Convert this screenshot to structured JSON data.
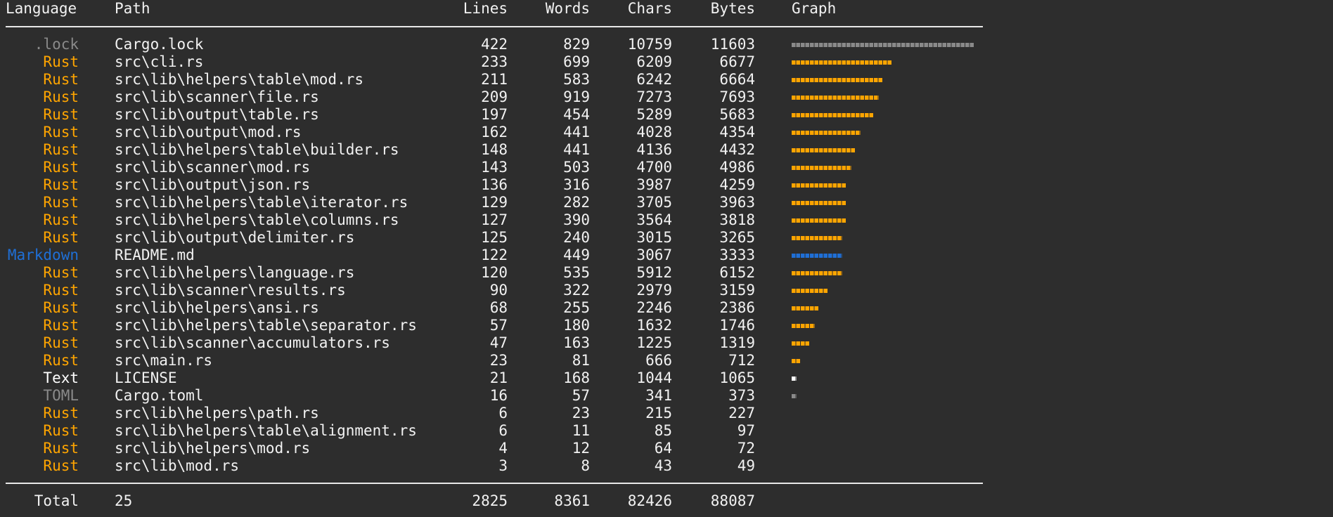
{
  "header": {
    "language": "Language",
    "path": "Path",
    "lines": "Lines",
    "words": "Words",
    "chars": "Chars",
    "bytes": "Bytes",
    "graph": "Graph"
  },
  "rows": [
    {
      "language": ".lock",
      "color": "#8a8a8a",
      "path": "Cargo.lock",
      "lines": 422,
      "words": 829,
      "chars": 10759,
      "bytes": 11603
    },
    {
      "language": "Rust",
      "color": "#ffa500",
      "path": "src\\cli.rs",
      "lines": 233,
      "words": 699,
      "chars": 6209,
      "bytes": 6677
    },
    {
      "language": "Rust",
      "color": "#ffa500",
      "path": "src\\lib\\helpers\\table\\mod.rs",
      "lines": 211,
      "words": 583,
      "chars": 6242,
      "bytes": 6664
    },
    {
      "language": "Rust",
      "color": "#ffa500",
      "path": "src\\lib\\scanner\\file.rs",
      "lines": 209,
      "words": 919,
      "chars": 7273,
      "bytes": 7693
    },
    {
      "language": "Rust",
      "color": "#ffa500",
      "path": "src\\lib\\output\\table.rs",
      "lines": 197,
      "words": 454,
      "chars": 5289,
      "bytes": 5683
    },
    {
      "language": "Rust",
      "color": "#ffa500",
      "path": "src\\lib\\output\\mod.rs",
      "lines": 162,
      "words": 441,
      "chars": 4028,
      "bytes": 4354
    },
    {
      "language": "Rust",
      "color": "#ffa500",
      "path": "src\\lib\\helpers\\table\\builder.rs",
      "lines": 148,
      "words": 441,
      "chars": 4136,
      "bytes": 4432
    },
    {
      "language": "Rust",
      "color": "#ffa500",
      "path": "src\\lib\\scanner\\mod.rs",
      "lines": 143,
      "words": 503,
      "chars": 4700,
      "bytes": 4986
    },
    {
      "language": "Rust",
      "color": "#ffa500",
      "path": "src\\lib\\output\\json.rs",
      "lines": 136,
      "words": 316,
      "chars": 3987,
      "bytes": 4259
    },
    {
      "language": "Rust",
      "color": "#ffa500",
      "path": "src\\lib\\helpers\\table\\iterator.rs",
      "lines": 129,
      "words": 282,
      "chars": 3705,
      "bytes": 3963
    },
    {
      "language": "Rust",
      "color": "#ffa500",
      "path": "src\\lib\\helpers\\table\\columns.rs",
      "lines": 127,
      "words": 390,
      "chars": 3564,
      "bytes": 3818
    },
    {
      "language": "Rust",
      "color": "#ffa500",
      "path": "src\\lib\\output\\delimiter.rs",
      "lines": 125,
      "words": 240,
      "chars": 3015,
      "bytes": 3265
    },
    {
      "language": "Markdown",
      "color": "#1f6fd6",
      "path": "README.md",
      "lines": 122,
      "words": 449,
      "chars": 3067,
      "bytes": 3333
    },
    {
      "language": "Rust",
      "color": "#ffa500",
      "path": "src\\lib\\helpers\\language.rs",
      "lines": 120,
      "words": 535,
      "chars": 5912,
      "bytes": 6152
    },
    {
      "language": "Rust",
      "color": "#ffa500",
      "path": "src\\lib\\scanner\\results.rs",
      "lines": 90,
      "words": 322,
      "chars": 2979,
      "bytes": 3159
    },
    {
      "language": "Rust",
      "color": "#ffa500",
      "path": "src\\lib\\helpers\\ansi.rs",
      "lines": 68,
      "words": 255,
      "chars": 2246,
      "bytes": 2386
    },
    {
      "language": "Rust",
      "color": "#ffa500",
      "path": "src\\lib\\helpers\\table\\separator.rs",
      "lines": 57,
      "words": 180,
      "chars": 1632,
      "bytes": 1746
    },
    {
      "language": "Rust",
      "color": "#ffa500",
      "path": "src\\lib\\scanner\\accumulators.rs",
      "lines": 47,
      "words": 163,
      "chars": 1225,
      "bytes": 1319
    },
    {
      "language": "Rust",
      "color": "#ffa500",
      "path": "src\\main.rs",
      "lines": 23,
      "words": 81,
      "chars": 666,
      "bytes": 712
    },
    {
      "language": "Text",
      "color": "#ffffff",
      "path": "LICENSE",
      "lines": 21,
      "words": 168,
      "chars": 1044,
      "bytes": 1065
    },
    {
      "language": "TOML",
      "color": "#8a8a8a",
      "path": "Cargo.toml",
      "lines": 16,
      "words": 57,
      "chars": 341,
      "bytes": 373
    },
    {
      "language": "Rust",
      "color": "#ffa500",
      "path": "src\\lib\\helpers\\path.rs",
      "lines": 6,
      "words": 23,
      "chars": 215,
      "bytes": 227
    },
    {
      "language": "Rust",
      "color": "#ffa500",
      "path": "src\\lib\\helpers\\table\\alignment.rs",
      "lines": 6,
      "words": 11,
      "chars": 85,
      "bytes": 97
    },
    {
      "language": "Rust",
      "color": "#ffa500",
      "path": "src\\lib\\helpers\\mod.rs",
      "lines": 4,
      "words": 12,
      "chars": 64,
      "bytes": 72
    },
    {
      "language": "Rust",
      "color": "#ffa500",
      "path": "src\\lib\\mod.rs",
      "lines": 3,
      "words": 8,
      "chars": 43,
      "bytes": 49
    }
  ],
  "total": {
    "label": "Total",
    "files": 25,
    "lines": 2825,
    "words": 8361,
    "chars": 82426,
    "bytes": 88087
  }
}
